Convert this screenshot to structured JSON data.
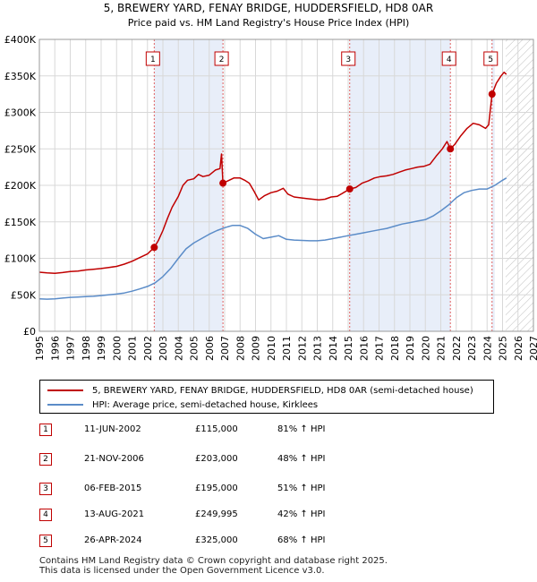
{
  "chart_data": {
    "type": "line",
    "title": "5, BREWERY YARD, FENAY BRIDGE, HUDDERSFIELD, HD8 0AR",
    "subtitle": "Price paid vs. HM Land Registry's House Price Index (HPI)",
    "xlim": [
      1995,
      2027
    ],
    "ylim": [
      0,
      400000
    ],
    "y_ticks": [
      0,
      50000,
      100000,
      150000,
      200000,
      250000,
      300000,
      350000,
      400000
    ],
    "y_tick_labels": [
      "£0",
      "£50K",
      "£100K",
      "£150K",
      "£200K",
      "£250K",
      "£300K",
      "£350K",
      "£400K"
    ],
    "x_ticks": [
      1995,
      1996,
      1997,
      1998,
      1999,
      2000,
      2001,
      2002,
      2003,
      2004,
      2005,
      2006,
      2007,
      2008,
      2009,
      2010,
      2011,
      2012,
      2013,
      2014,
      2015,
      2016,
      2017,
      2018,
      2019,
      2020,
      2021,
      2022,
      2023,
      2024,
      2025,
      2026,
      2027
    ],
    "grid": true,
    "hatch_from": 2025.2,
    "series": [
      {
        "name": "5, BREWERY YARD, FENAY BRIDGE, HUDDERSFIELD, HD8 0AR (semi-detached house)",
        "color": "#c00000",
        "points": [
          [
            1995.0,
            81000
          ],
          [
            1995.5,
            80000
          ],
          [
            1996.0,
            79500
          ],
          [
            1996.5,
            80500
          ],
          [
            1997.0,
            82000
          ],
          [
            1997.5,
            82500
          ],
          [
            1998.0,
            84000
          ],
          [
            1998.5,
            85000
          ],
          [
            1999.0,
            86000
          ],
          [
            1999.5,
            87500
          ],
          [
            2000.0,
            89000
          ],
          [
            2000.5,
            92000
          ],
          [
            2001.0,
            96000
          ],
          [
            2001.5,
            101000
          ],
          [
            2002.0,
            106000
          ],
          [
            2002.44,
            115000
          ],
          [
            2002.7,
            124000
          ],
          [
            2003.0,
            138000
          ],
          [
            2003.3,
            155000
          ],
          [
            2003.6,
            170000
          ],
          [
            2004.0,
            185000
          ],
          [
            2004.3,
            200000
          ],
          [
            2004.6,
            207000
          ],
          [
            2005.0,
            209000
          ],
          [
            2005.3,
            215000
          ],
          [
            2005.6,
            212000
          ],
          [
            2006.0,
            214000
          ],
          [
            2006.4,
            221000
          ],
          [
            2006.7,
            223000
          ],
          [
            2006.8,
            243000
          ],
          [
            2006.89,
            203000
          ],
          [
            2007.2,
            206000
          ],
          [
            2007.6,
            210000
          ],
          [
            2008.0,
            210000
          ],
          [
            2008.3,
            207000
          ],
          [
            2008.6,
            203000
          ],
          [
            2008.9,
            192000
          ],
          [
            2009.2,
            180000
          ],
          [
            2009.6,
            186000
          ],
          [
            2010.0,
            190000
          ],
          [
            2010.4,
            192000
          ],
          [
            2010.8,
            196000
          ],
          [
            2011.1,
            188000
          ],
          [
            2011.5,
            184000
          ],
          [
            2011.9,
            183000
          ],
          [
            2012.3,
            182000
          ],
          [
            2012.7,
            181000
          ],
          [
            2013.1,
            180000
          ],
          [
            2013.5,
            181000
          ],
          [
            2013.9,
            184000
          ],
          [
            2014.3,
            185000
          ],
          [
            2014.7,
            190000
          ],
          [
            2015.1,
            195000
          ],
          [
            2015.5,
            197000
          ],
          [
            2015.9,
            203000
          ],
          [
            2016.3,
            206000
          ],
          [
            2016.7,
            210000
          ],
          [
            2017.1,
            212000
          ],
          [
            2017.5,
            213000
          ],
          [
            2017.9,
            215000
          ],
          [
            2018.3,
            218000
          ],
          [
            2018.7,
            221000
          ],
          [
            2019.1,
            223000
          ],
          [
            2019.5,
            225000
          ],
          [
            2019.9,
            226000
          ],
          [
            2020.3,
            229000
          ],
          [
            2020.7,
            240000
          ],
          [
            2021.1,
            250000
          ],
          [
            2021.4,
            260000
          ],
          [
            2021.62,
            249995
          ],
          [
            2021.9,
            256000
          ],
          [
            2022.3,
            268000
          ],
          [
            2022.7,
            278000
          ],
          [
            2023.1,
            285000
          ],
          [
            2023.5,
            283000
          ],
          [
            2023.9,
            278000
          ],
          [
            2024.1,
            283000
          ],
          [
            2024.32,
            325000
          ],
          [
            2024.6,
            340000
          ],
          [
            2024.9,
            350000
          ],
          [
            2025.1,
            355000
          ],
          [
            2025.25,
            352000
          ]
        ]
      },
      {
        "name": "HPI: Average price, semi-detached house, Kirklees",
        "color": "#5b8cc8",
        "points": [
          [
            1995.0,
            44500
          ],
          [
            1995.5,
            44000
          ],
          [
            1996.0,
            44500
          ],
          [
            1996.5,
            45500
          ],
          [
            1997.0,
            46500
          ],
          [
            1997.5,
            47000
          ],
          [
            1998.0,
            47500
          ],
          [
            1998.5,
            48000
          ],
          [
            1999.0,
            49000
          ],
          [
            1999.5,
            50000
          ],
          [
            2000.0,
            51000
          ],
          [
            2000.5,
            52500
          ],
          [
            2001.0,
            55000
          ],
          [
            2001.5,
            58000
          ],
          [
            2002.0,
            61500
          ],
          [
            2002.5,
            66500
          ],
          [
            2003.0,
            75000
          ],
          [
            2003.5,
            86000
          ],
          [
            2004.0,
            100000
          ],
          [
            2004.5,
            113000
          ],
          [
            2005.0,
            121000
          ],
          [
            2005.5,
            127000
          ],
          [
            2006.0,
            133000
          ],
          [
            2006.5,
            138000
          ],
          [
            2007.0,
            142000
          ],
          [
            2007.5,
            145000
          ],
          [
            2008.0,
            145000
          ],
          [
            2008.5,
            141000
          ],
          [
            2009.0,
            133000
          ],
          [
            2009.5,
            127000
          ],
          [
            2010.0,
            129000
          ],
          [
            2010.5,
            131000
          ],
          [
            2011.0,
            126000
          ],
          [
            2011.5,
            125000
          ],
          [
            2012.0,
            124500
          ],
          [
            2012.5,
            124000
          ],
          [
            2013.0,
            124000
          ],
          [
            2013.5,
            125000
          ],
          [
            2014.0,
            127000
          ],
          [
            2014.5,
            129000
          ],
          [
            2015.0,
            131000
          ],
          [
            2015.5,
            133000
          ],
          [
            2016.0,
            135000
          ],
          [
            2016.5,
            137000
          ],
          [
            2017.0,
            139000
          ],
          [
            2017.5,
            141000
          ],
          [
            2018.0,
            144000
          ],
          [
            2018.5,
            147000
          ],
          [
            2019.0,
            149000
          ],
          [
            2019.5,
            151000
          ],
          [
            2020.0,
            153000
          ],
          [
            2020.5,
            158000
          ],
          [
            2021.0,
            165000
          ],
          [
            2021.5,
            173000
          ],
          [
            2022.0,
            183000
          ],
          [
            2022.5,
            190000
          ],
          [
            2023.0,
            193000
          ],
          [
            2023.5,
            195000
          ],
          [
            2024.0,
            195000
          ],
          [
            2024.5,
            200000
          ],
          [
            2025.0,
            207000
          ],
          [
            2025.25,
            210000
          ]
        ]
      }
    ],
    "sales": [
      {
        "label": "1",
        "date": "11-JUN-2002",
        "x": 2002.44,
        "price": 115000,
        "price_label": "£115,000",
        "hpi": "81% ↑ HPI"
      },
      {
        "label": "2",
        "date": "21-NOV-2006",
        "x": 2006.89,
        "price": 203000,
        "price_label": "£203,000",
        "hpi": "48% ↑ HPI"
      },
      {
        "label": "3",
        "date": "06-FEB-2015",
        "x": 2015.1,
        "price": 195000,
        "price_label": "£195,000",
        "hpi": "51% ↑ HPI"
      },
      {
        "label": "4",
        "date": "13-AUG-2021",
        "x": 2021.62,
        "price": 249995,
        "price_label": "£249,995",
        "hpi": "42% ↑ HPI"
      },
      {
        "label": "5",
        "date": "26-APR-2024",
        "x": 2024.32,
        "price": 325000,
        "price_label": "£325,000",
        "hpi": "68% ↑ HPI"
      }
    ],
    "shaded_periods": [
      [
        2002.44,
        2006.89
      ],
      [
        2015.1,
        2021.62
      ],
      [
        2024.32,
        2024.32
      ]
    ]
  },
  "legend": {
    "property_label": "5, BREWERY YARD, FENAY BRIDGE, HUDDERSFIELD, HD8 0AR (semi-detached house)",
    "hpi_label": "HPI: Average price, semi-detached house, Kirklees"
  },
  "footer": {
    "line1": "Contains HM Land Registry data © Crown copyright and database right 2025.",
    "line2": "This data is licensed under the Open Government Licence v3.0."
  },
  "colors": {
    "property": "#c00000",
    "hpi": "#5b8cc8",
    "shade": "#e8eef9",
    "grid": "#d8d8d8"
  }
}
